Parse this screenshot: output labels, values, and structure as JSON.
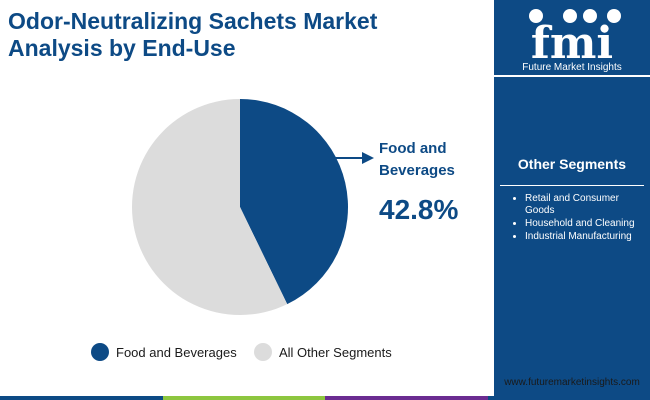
{
  "header": {
    "title_line1": "Odor-Neutralizing Sachets Market",
    "title_line2": "Analysis by End-Use"
  },
  "brand": {
    "logo_text": "fmi",
    "name": "Future Market Insights",
    "website": "www.futuremarketinsights.com"
  },
  "other_segments": {
    "title": "Other Segments",
    "items": [
      "Retail and Consumer Goods",
      "Household and Cleaning",
      "Industrial Manufacturing"
    ]
  },
  "callout": {
    "label_line1": "Food and",
    "label_line2": "Beverages",
    "value": "42.8%"
  },
  "legend": [
    {
      "label": "Food and Beverages",
      "color": "#0d4a85"
    },
    {
      "label": "All Other Segments",
      "color": "#dcdcdc"
    }
  ],
  "colors": {
    "primary": "#0d4a85",
    "other": "#dcdcdc",
    "bottom_bar": [
      "#0d4a85",
      "#8dc63f",
      "#6b2c91",
      "#0d4a85"
    ]
  },
  "chart_data": {
    "type": "pie",
    "title": "Odor-Neutralizing Sachets Market Analysis by End-Use",
    "slices": [
      {
        "label": "Food and Beverages",
        "value": 42.8,
        "color": "#0d4a85"
      },
      {
        "label": "All Other Segments",
        "value": 57.2,
        "color": "#dcdcdc"
      }
    ],
    "legend_position": "bottom"
  }
}
